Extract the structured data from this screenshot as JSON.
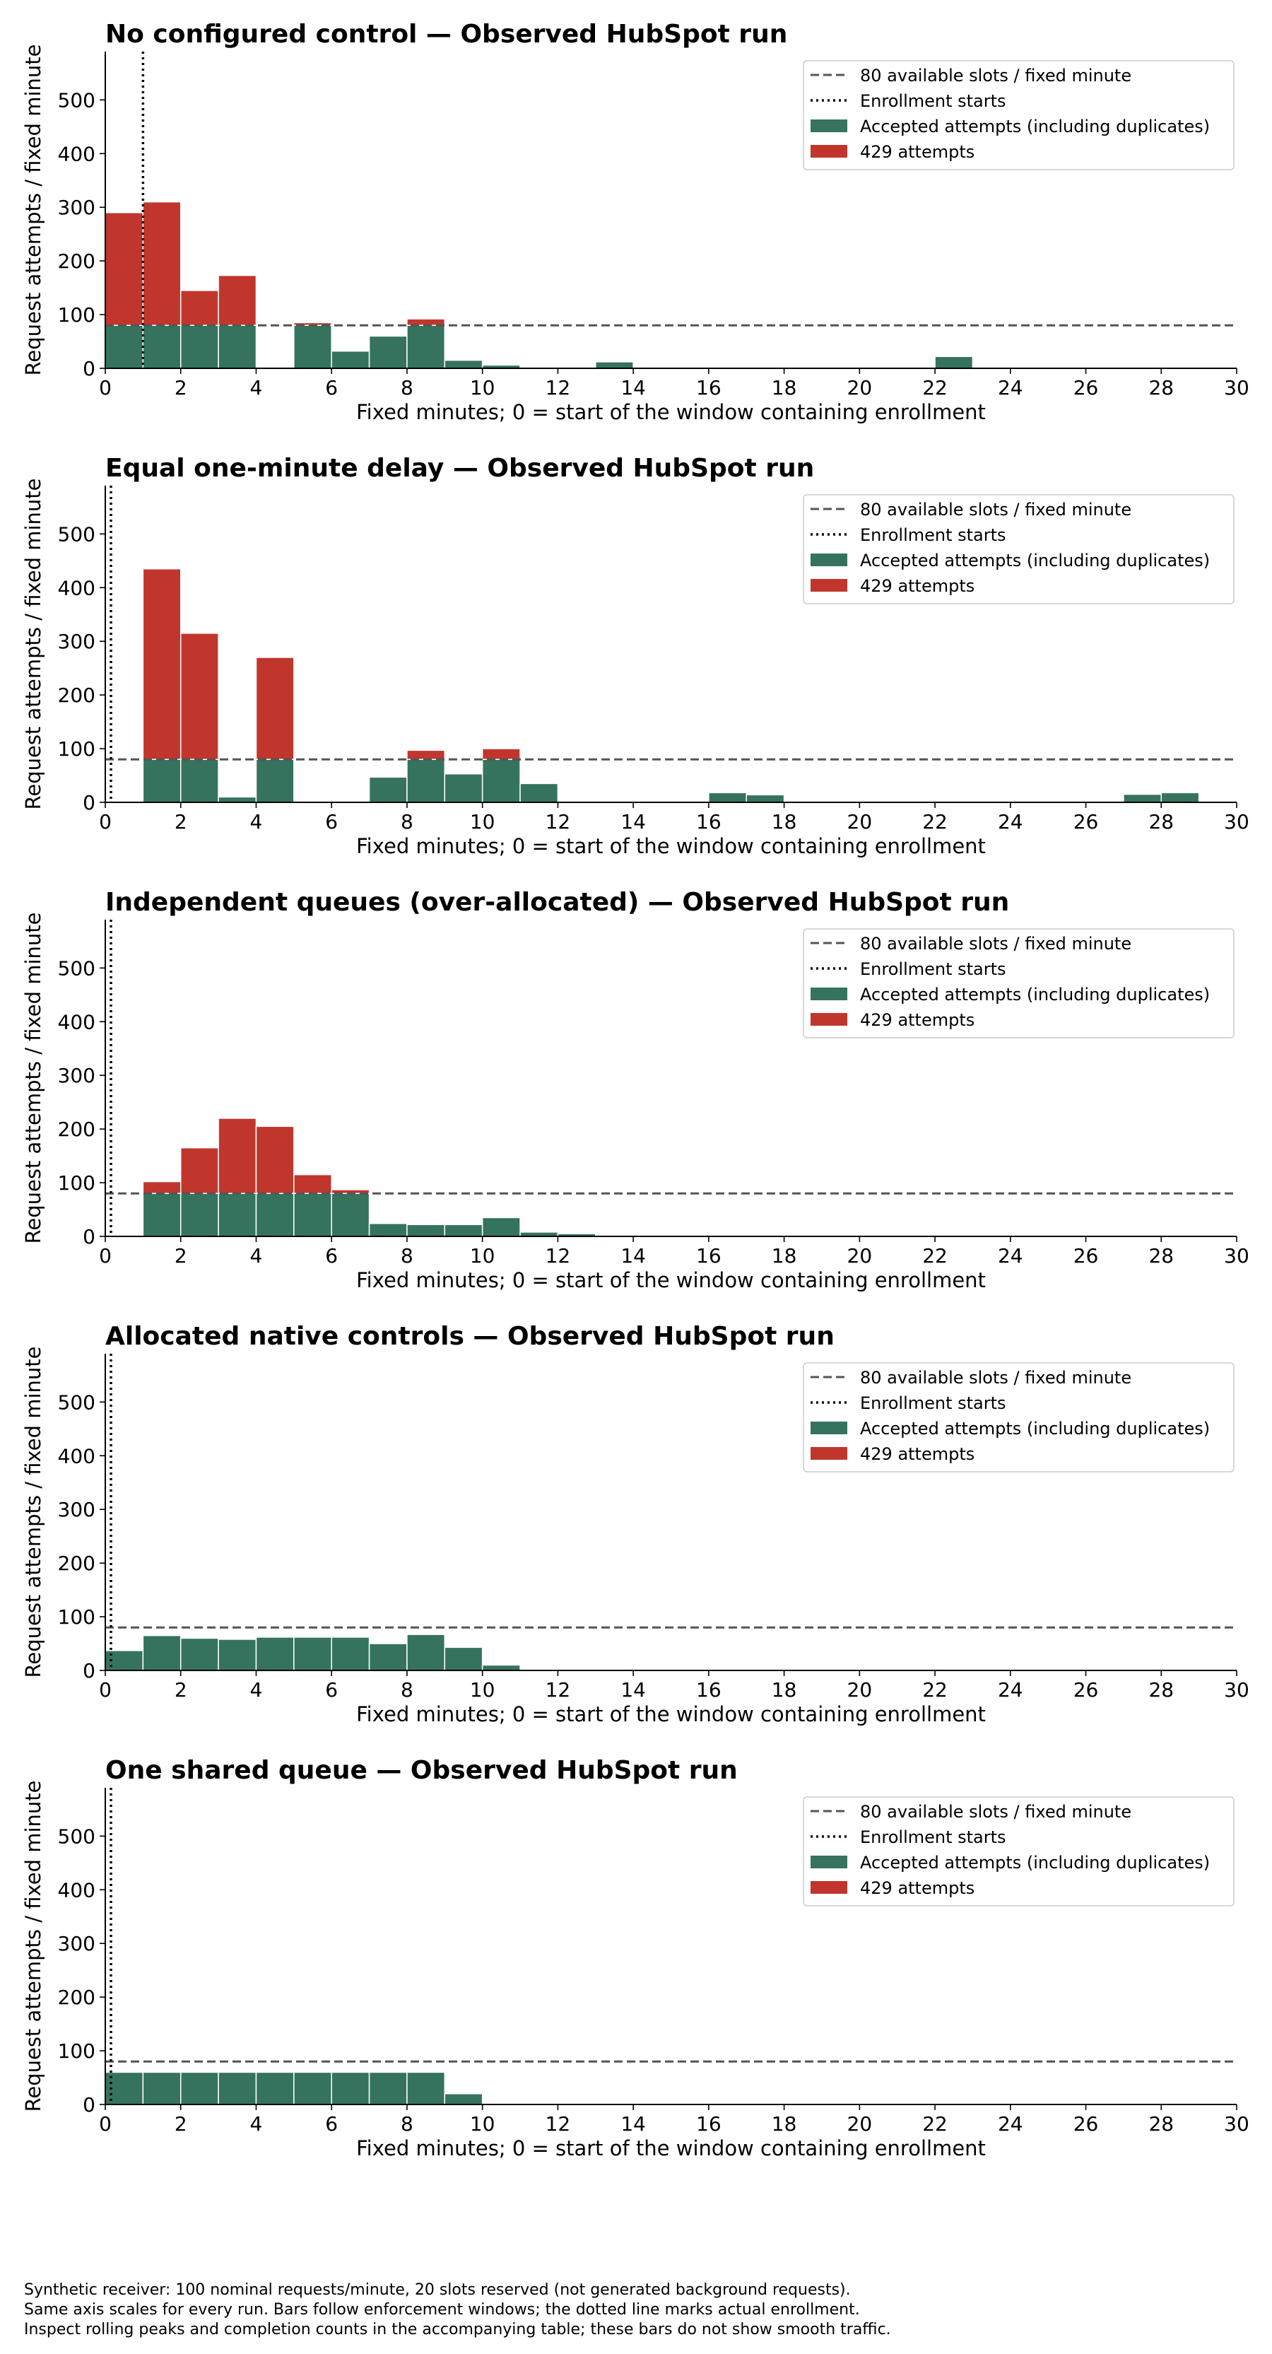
{
  "chart_data": [
    {
      "type": "bar",
      "stacked": true,
      "title": "No configured control — Observed HubSpot run",
      "xlabel": "Fixed minutes; 0 = start of the window containing enrollment",
      "ylabel": "Request attempts / fixed minute",
      "xlim": [
        0,
        30
      ],
      "ylim": [
        0,
        590
      ],
      "xticks": [
        "0",
        "2",
        "4",
        "6",
        "8",
        "10",
        "12",
        "14",
        "16",
        "18",
        "20",
        "22",
        "24",
        "26",
        "28",
        "30"
      ],
      "yticks": [
        "0",
        "100",
        "200",
        "300",
        "400",
        "500"
      ],
      "capacity": 80,
      "enrollment_start": 1.0,
      "legend_position": "upper right",
      "legend": [
        "80 available slots / fixed minute",
        "Enrollment starts",
        "Accepted attempts (including duplicates)",
        "429 attempts"
      ],
      "colors": {
        "accepted": "#35735f",
        "rejected": "#c0362d",
        "capacity_line": "#555555",
        "enrollment_line": "#000000"
      },
      "series": [
        {
          "name": "Accepted attempts (including duplicates)",
          "x": [
            0,
            1,
            2,
            3,
            5,
            6,
            7,
            8,
            9,
            10,
            13,
            22
          ],
          "values": [
            80,
            80,
            80,
            80,
            80,
            32,
            60,
            80,
            15,
            6,
            12,
            22
          ]
        },
        {
          "name": "429 attempts",
          "x": [
            0,
            1,
            2,
            3,
            5,
            6,
            7,
            8,
            9,
            10,
            13,
            22
          ],
          "values": [
            210,
            230,
            65,
            93,
            5,
            0,
            0,
            12,
            0,
            0,
            0,
            0
          ]
        }
      ]
    },
    {
      "type": "bar",
      "stacked": true,
      "title": "Equal one-minute delay — Observed HubSpot run",
      "xlabel": "Fixed minutes; 0 = start of the window containing enrollment",
      "ylabel": "Request attempts / fixed minute",
      "xlim": [
        0,
        30
      ],
      "ylim": [
        0,
        590
      ],
      "xticks": [
        "0",
        "2",
        "4",
        "6",
        "8",
        "10",
        "12",
        "14",
        "16",
        "18",
        "20",
        "22",
        "24",
        "26",
        "28",
        "30"
      ],
      "yticks": [
        "0",
        "100",
        "200",
        "300",
        "400",
        "500"
      ],
      "capacity": 80,
      "enrollment_start": 0.15,
      "legend_position": "upper right",
      "legend": [
        "80 available slots / fixed minute",
        "Enrollment starts",
        "Accepted attempts (including duplicates)",
        "429 attempts"
      ],
      "colors": {
        "accepted": "#35735f",
        "rejected": "#c0362d",
        "capacity_line": "#555555",
        "enrollment_line": "#000000"
      },
      "series": [
        {
          "name": "Accepted attempts (including duplicates)",
          "x": [
            1,
            2,
            3,
            4,
            7,
            8,
            9,
            10,
            11,
            16,
            17,
            27,
            28
          ],
          "values": [
            80,
            80,
            10,
            80,
            47,
            80,
            53,
            80,
            35,
            18,
            14,
            15,
            18
          ]
        },
        {
          "name": "429 attempts",
          "x": [
            1,
            2,
            3,
            4,
            7,
            8,
            9,
            10,
            11,
            16,
            17,
            27,
            28
          ],
          "values": [
            355,
            235,
            0,
            190,
            0,
            17,
            0,
            20,
            0,
            0,
            0,
            0,
            0
          ]
        }
      ]
    },
    {
      "type": "bar",
      "stacked": true,
      "title": "Independent queues (over-allocated) — Observed HubSpot run",
      "xlabel": "Fixed minutes; 0 = start of the window containing enrollment",
      "ylabel": "Request attempts / fixed minute",
      "xlim": [
        0,
        30
      ],
      "ylim": [
        0,
        590
      ],
      "xticks": [
        "0",
        "2",
        "4",
        "6",
        "8",
        "10",
        "12",
        "14",
        "16",
        "18",
        "20",
        "22",
        "24",
        "26",
        "28",
        "30"
      ],
      "yticks": [
        "0",
        "100",
        "200",
        "300",
        "400",
        "500"
      ],
      "capacity": 80,
      "enrollment_start": 0.15,
      "legend_position": "upper right",
      "legend": [
        "80 available slots / fixed minute",
        "Enrollment starts",
        "Accepted attempts (including duplicates)",
        "429 attempts"
      ],
      "colors": {
        "accepted": "#35735f",
        "rejected": "#c0362d",
        "capacity_line": "#555555",
        "enrollment_line": "#000000"
      },
      "series": [
        {
          "name": "Accepted attempts (including duplicates)",
          "x": [
            1,
            2,
            3,
            4,
            5,
            6,
            7,
            8,
            9,
            10,
            11,
            12,
            13
          ],
          "values": [
            80,
            80,
            80,
            80,
            80,
            80,
            24,
            22,
            22,
            35,
            8,
            5,
            2
          ]
        },
        {
          "name": "429 attempts",
          "x": [
            1,
            2,
            3,
            4,
            5,
            6,
            7,
            8,
            9,
            10,
            11,
            12,
            13
          ],
          "values": [
            22,
            85,
            140,
            125,
            35,
            7,
            0,
            0,
            0,
            0,
            0,
            0,
            0
          ]
        }
      ]
    },
    {
      "type": "bar",
      "stacked": true,
      "title": "Allocated native controls — Observed HubSpot run",
      "xlabel": "Fixed minutes; 0 = start of the window containing enrollment",
      "ylabel": "Request attempts / fixed minute",
      "xlim": [
        0,
        30
      ],
      "ylim": [
        0,
        590
      ],
      "xticks": [
        "0",
        "2",
        "4",
        "6",
        "8",
        "10",
        "12",
        "14",
        "16",
        "18",
        "20",
        "22",
        "24",
        "26",
        "28",
        "30"
      ],
      "yticks": [
        "0",
        "100",
        "200",
        "300",
        "400",
        "500"
      ],
      "capacity": 80,
      "enrollment_start": 0.15,
      "legend_position": "upper right",
      "legend": [
        "80 available slots / fixed minute",
        "Enrollment starts",
        "Accepted attempts (including duplicates)",
        "429 attempts"
      ],
      "colors": {
        "accepted": "#35735f",
        "rejected": "#c0362d",
        "capacity_line": "#555555",
        "enrollment_line": "#000000"
      },
      "series": [
        {
          "name": "Accepted attempts (including duplicates)",
          "x": [
            0,
            1,
            2,
            3,
            4,
            5,
            6,
            7,
            8,
            9,
            10
          ],
          "values": [
            37,
            65,
            60,
            58,
            62,
            62,
            62,
            50,
            67,
            43,
            10
          ]
        },
        {
          "name": "429 attempts",
          "x": [
            0,
            1,
            2,
            3,
            4,
            5,
            6,
            7,
            8,
            9,
            10
          ],
          "values": [
            0,
            0,
            0,
            0,
            0,
            0,
            0,
            0,
            0,
            0,
            0
          ]
        }
      ]
    },
    {
      "type": "bar",
      "stacked": true,
      "title": "One shared queue — Observed HubSpot run",
      "xlabel": "Fixed minutes; 0 = start of the window containing enrollment",
      "ylabel": "Request attempts / fixed minute",
      "xlim": [
        0,
        30
      ],
      "ylim": [
        0,
        590
      ],
      "xticks": [
        "0",
        "2",
        "4",
        "6",
        "8",
        "10",
        "12",
        "14",
        "16",
        "18",
        "20",
        "22",
        "24",
        "26",
        "28",
        "30"
      ],
      "yticks": [
        "0",
        "100",
        "200",
        "300",
        "400",
        "500"
      ],
      "capacity": 80,
      "enrollment_start": 0.15,
      "legend_position": "upper right",
      "legend": [
        "80 available slots / fixed minute",
        "Enrollment starts",
        "Accepted attempts (including duplicates)",
        "429 attempts"
      ],
      "colors": {
        "accepted": "#35735f",
        "rejected": "#c0362d",
        "capacity_line": "#555555",
        "enrollment_line": "#000000"
      },
      "series": [
        {
          "name": "Accepted attempts (including duplicates)",
          "x": [
            0,
            1,
            2,
            3,
            4,
            5,
            6,
            7,
            8,
            9
          ],
          "values": [
            60,
            60,
            60,
            60,
            60,
            60,
            60,
            60,
            60,
            20
          ]
        },
        {
          "name": "429 attempts",
          "x": [
            0,
            1,
            2,
            3,
            4,
            5,
            6,
            7,
            8,
            9
          ],
          "values": [
            0,
            0,
            0,
            0,
            0,
            0,
            0,
            0,
            0,
            0
          ]
        }
      ]
    }
  ],
  "footnote": [
    "Synthetic receiver: 100 nominal requests/minute, 20 slots reserved (not generated background requests).",
    "Same axis scales for every run. Bars follow enforcement windows; the dotted line marks actual enrollment.",
    "Inspect rolling peaks and completion counts in the accompanying table; these bars do not show smooth traffic."
  ]
}
